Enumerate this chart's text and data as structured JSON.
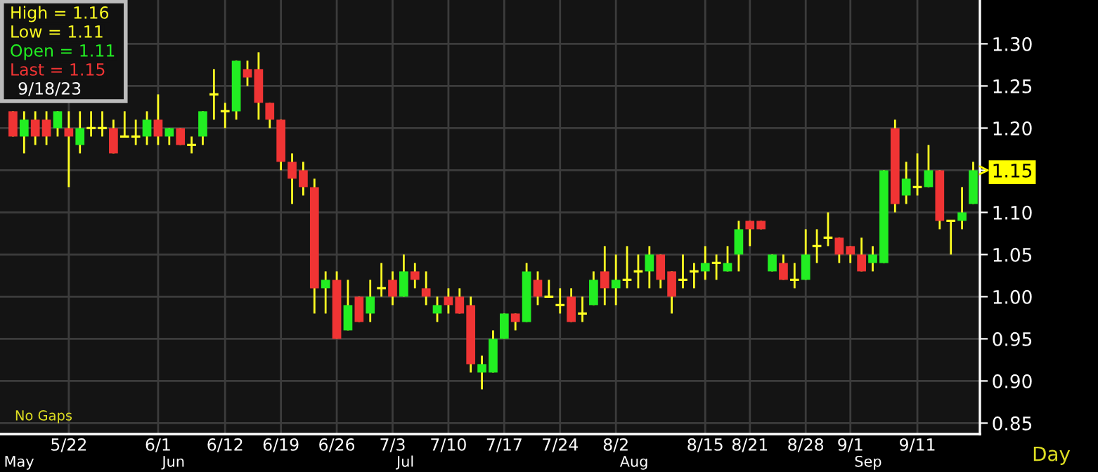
{
  "chart_data": {
    "type": "candlestick",
    "categories": [
      null,
      null,
      null,
      null,
      null,
      "5/22",
      null,
      null,
      null,
      null,
      null,
      null,
      null,
      "6/1",
      null,
      null,
      null,
      null,
      null,
      "6/12",
      null,
      null,
      null,
      null,
      "6/19",
      null,
      null,
      null,
      null,
      "6/26",
      null,
      null,
      null,
      null,
      "7/3",
      null,
      null,
      null,
      null,
      "7/10",
      null,
      null,
      null,
      null,
      "7/17",
      null,
      null,
      null,
      null,
      "7/24",
      null,
      null,
      null,
      null,
      "8/2",
      null,
      null,
      null,
      null,
      null,
      null,
      null,
      "8/15",
      null,
      null,
      null,
      "8/21",
      null,
      null,
      null,
      null,
      "8/28",
      null,
      null,
      null,
      "9/1",
      null,
      null,
      null,
      null,
      null,
      "9/11",
      null,
      null,
      null,
      null,
      null
    ],
    "ohlc": [
      [
        1.22,
        1.22,
        1.19,
        1.19
      ],
      [
        1.19,
        1.22,
        1.17,
        1.21
      ],
      [
        1.21,
        1.22,
        1.18,
        1.19
      ],
      [
        1.21,
        1.22,
        1.18,
        1.19
      ],
      [
        1.2,
        1.22,
        1.19,
        1.22
      ],
      [
        1.2,
        1.22,
        1.13,
        1.19
      ],
      [
        1.18,
        1.22,
        1.17,
        1.2
      ],
      [
        1.2,
        1.22,
        1.19,
        1.2
      ],
      [
        1.2,
        1.22,
        1.19,
        1.2
      ],
      [
        1.2,
        1.21,
        1.17,
        1.17
      ],
      [
        1.19,
        1.22,
        1.19,
        1.19
      ],
      [
        1.19,
        1.21,
        1.18,
        1.19
      ],
      [
        1.19,
        1.22,
        1.18,
        1.21
      ],
      [
        1.21,
        1.24,
        1.18,
        1.19
      ],
      [
        1.19,
        1.2,
        1.18,
        1.2
      ],
      [
        1.2,
        1.2,
        1.18,
        1.18
      ],
      [
        1.18,
        1.19,
        1.17,
        1.18
      ],
      [
        1.19,
        1.22,
        1.18,
        1.22
      ],
      [
        1.24,
        1.27,
        1.21,
        1.24
      ],
      [
        1.22,
        1.23,
        1.2,
        1.22
      ],
      [
        1.22,
        1.28,
        1.21,
        1.28
      ],
      [
        1.27,
        1.28,
        1.25,
        1.26
      ],
      [
        1.27,
        1.29,
        1.21,
        1.23
      ],
      [
        1.23,
        1.23,
        1.2,
        1.21
      ],
      [
        1.21,
        1.21,
        1.15,
        1.16
      ],
      [
        1.16,
        1.17,
        1.11,
        1.14
      ],
      [
        1.15,
        1.16,
        1.12,
        1.13
      ],
      [
        1.13,
        1.14,
        0.98,
        1.01
      ],
      [
        1.01,
        1.03,
        0.98,
        1.02
      ],
      [
        1.02,
        1.03,
        0.95,
        0.95
      ],
      [
        0.96,
        1.02,
        0.96,
        0.99
      ],
      [
        1.0,
        1.0,
        0.97,
        0.97
      ],
      [
        0.98,
        1.02,
        0.97,
        1.0
      ],
      [
        1.01,
        1.04,
        1.0,
        1.01
      ],
      [
        1.02,
        1.03,
        0.99,
        1.0
      ],
      [
        1.0,
        1.05,
        1.0,
        1.03
      ],
      [
        1.03,
        1.04,
        1.01,
        1.02
      ],
      [
        1.01,
        1.03,
        0.99,
        1.0
      ],
      [
        0.98,
        1.0,
        0.97,
        0.99
      ],
      [
        1.0,
        1.01,
        0.98,
        0.99
      ],
      [
        1.0,
        1.01,
        0.98,
        0.98
      ],
      [
        0.99,
        1.0,
        0.91,
        0.92
      ],
      [
        0.91,
        0.93,
        0.89,
        0.92
      ],
      [
        0.91,
        0.96,
        0.91,
        0.95
      ],
      [
        0.95,
        0.98,
        0.95,
        0.98
      ],
      [
        0.98,
        0.98,
        0.96,
        0.97
      ],
      [
        0.97,
        1.04,
        0.97,
        1.03
      ],
      [
        1.02,
        1.03,
        0.99,
        1.0
      ],
      [
        1.0,
        1.02,
        1.0,
        1.0
      ],
      [
        0.99,
        1.01,
        0.98,
        0.99
      ],
      [
        1.0,
        1.01,
        0.97,
        0.97
      ],
      [
        0.98,
        1.0,
        0.97,
        0.98
      ],
      [
        0.99,
        1.03,
        0.99,
        1.02
      ],
      [
        1.03,
        1.06,
        0.99,
        1.01
      ],
      [
        1.01,
        1.05,
        0.99,
        1.02
      ],
      [
        1.02,
        1.06,
        1.01,
        1.02
      ],
      [
        1.03,
        1.05,
        1.01,
        1.03
      ],
      [
        1.03,
        1.06,
        1.01,
        1.05
      ],
      [
        1.05,
        1.05,
        1.01,
        1.02
      ],
      [
        1.03,
        1.03,
        0.98,
        1.0
      ],
      [
        1.02,
        1.05,
        1.01,
        1.02
      ],
      [
        1.03,
        1.04,
        1.01,
        1.03
      ],
      [
        1.03,
        1.06,
        1.02,
        1.04
      ],
      [
        1.04,
        1.05,
        1.02,
        1.04
      ],
      [
        1.03,
        1.06,
        1.03,
        1.04
      ],
      [
        1.05,
        1.09,
        1.03,
        1.08
      ],
      [
        1.09,
        1.09,
        1.06,
        1.08
      ],
      [
        1.09,
        1.09,
        1.08,
        1.08
      ],
      [
        1.03,
        1.05,
        1.03,
        1.05
      ],
      [
        1.04,
        1.05,
        1.02,
        1.02
      ],
      [
        1.02,
        1.04,
        1.01,
        1.02
      ],
      [
        1.02,
        1.08,
        1.02,
        1.05
      ],
      [
        1.06,
        1.08,
        1.04,
        1.06
      ],
      [
        1.07,
        1.1,
        1.06,
        1.07
      ],
      [
        1.07,
        1.07,
        1.04,
        1.05
      ],
      [
        1.06,
        1.06,
        1.04,
        1.05
      ],
      [
        1.05,
        1.07,
        1.03,
        1.03
      ],
      [
        1.04,
        1.06,
        1.03,
        1.05
      ],
      [
        1.04,
        1.15,
        1.04,
        1.15
      ],
      [
        1.2,
        1.21,
        1.1,
        1.11
      ],
      [
        1.12,
        1.16,
        1.11,
        1.14
      ],
      [
        1.13,
        1.17,
        1.12,
        1.13
      ],
      [
        1.13,
        1.18,
        1.13,
        1.15
      ],
      [
        1.15,
        1.15,
        1.08,
        1.09
      ],
      [
        1.09,
        1.09,
        1.05,
        1.09
      ],
      [
        1.09,
        1.13,
        1.08,
        1.1
      ],
      [
        1.11,
        1.16,
        1.11,
        1.15
      ]
    ],
    "ylim": [
      0.837,
      1.352
    ],
    "yticks": [
      {
        "value": 0.85,
        "label": "0.85"
      },
      {
        "value": 0.9,
        "label": "0.90"
      },
      {
        "value": 0.95,
        "label": "0.95"
      },
      {
        "value": 1.0,
        "label": "1.00"
      },
      {
        "value": 1.05,
        "label": "1.05"
      },
      {
        "value": 1.1,
        "label": "1.10"
      },
      {
        "value": 1.15,
        "label": "1.15"
      },
      {
        "value": 1.2,
        "label": "1.20"
      },
      {
        "value": 1.25,
        "label": "1.25"
      },
      {
        "value": 1.3,
        "label": "1.30"
      }
    ],
    "grid": true,
    "annotations": [
      "High = 1.16",
      "Low = 1.11",
      "Open = 1.11",
      "Last = 1.15",
      "9/18/23",
      "No Gaps",
      "Day",
      "May",
      "Jun",
      "Jul",
      "Aug",
      "Sep"
    ]
  }
}
